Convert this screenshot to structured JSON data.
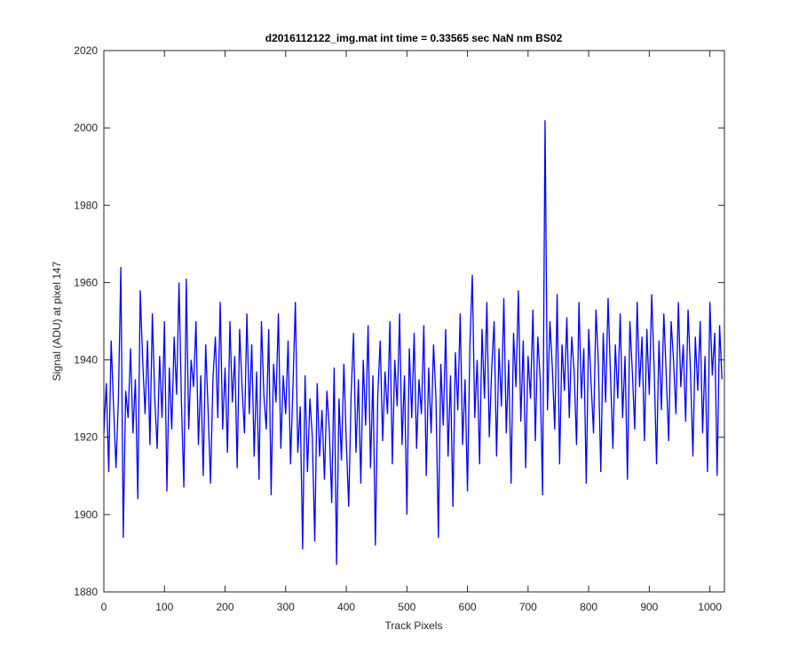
{
  "chart_data": {
    "type": "line",
    "title": "d2016112122_img.mat int time = 0.33565 sec  NaN nm BS02",
    "x_label": "Track Pixels",
    "y_label": "Signal (ADU) at pixel 147",
    "xlim": [
      0,
      1024
    ],
    "ylim": [
      1880,
      2020
    ],
    "xticks": [
      0,
      100,
      200,
      300,
      400,
      500,
      600,
      700,
      800,
      900,
      1000
    ],
    "yticks": [
      1880,
      1900,
      1920,
      1940,
      1960,
      1980,
      2000,
      2020
    ],
    "grid": false,
    "x": [
      0,
      4,
      8,
      12,
      16,
      20,
      24,
      28,
      32,
      36,
      40,
      44,
      48,
      52,
      56,
      60,
      64,
      68,
      72,
      76,
      80,
      84,
      88,
      92,
      96,
      100,
      104,
      108,
      112,
      116,
      120,
      124,
      128,
      132,
      136,
      140,
      144,
      148,
      152,
      156,
      160,
      164,
      168,
      172,
      176,
      180,
      184,
      188,
      192,
      196,
      200,
      204,
      208,
      212,
      216,
      220,
      224,
      228,
      232,
      236,
      240,
      244,
      248,
      252,
      256,
      260,
      264,
      268,
      272,
      276,
      280,
      284,
      288,
      292,
      296,
      300,
      304,
      308,
      312,
      316,
      320,
      324,
      328,
      332,
      336,
      340,
      344,
      348,
      352,
      356,
      360,
      364,
      368,
      372,
      376,
      380,
      384,
      388,
      392,
      396,
      400,
      404,
      408,
      412,
      416,
      420,
      424,
      428,
      432,
      436,
      440,
      444,
      448,
      452,
      456,
      460,
      464,
      468,
      472,
      476,
      480,
      484,
      488,
      492,
      496,
      500,
      504,
      508,
      512,
      516,
      520,
      524,
      528,
      532,
      536,
      540,
      544,
      548,
      552,
      556,
      560,
      564,
      568,
      572,
      576,
      580,
      584,
      588,
      592,
      596,
      600,
      604,
      608,
      612,
      616,
      620,
      624,
      628,
      632,
      636,
      640,
      644,
      648,
      652,
      656,
      660,
      664,
      668,
      672,
      676,
      680,
      684,
      688,
      692,
      696,
      700,
      704,
      708,
      712,
      716,
      720,
      724,
      728,
      732,
      736,
      740,
      744,
      748,
      752,
      756,
      760,
      764,
      768,
      772,
      776,
      780,
      784,
      788,
      792,
      796,
      800,
      804,
      808,
      812,
      816,
      820,
      824,
      828,
      832,
      836,
      840,
      844,
      848,
      852,
      856,
      860,
      864,
      868,
      872,
      876,
      880,
      884,
      888,
      892,
      896,
      900,
      904,
      908,
      912,
      916,
      920,
      924,
      928,
      932,
      936,
      940,
      944,
      948,
      952,
      956,
      960,
      964,
      968,
      972,
      976,
      980,
      984,
      988,
      992,
      996,
      1000,
      1004,
      1008,
      1012,
      1016,
      1020
    ],
    "series": [
      {
        "color": "#0000ff",
        "values": [
          1921,
          1934,
          1911,
          1945,
          1928,
          1912,
          1930,
          1964,
          1894,
          1932,
          1925,
          1943,
          1921,
          1935,
          1904,
          1958,
          1940,
          1926,
          1945,
          1918,
          1952,
          1930,
          1917,
          1941,
          1925,
          1950,
          1906,
          1938,
          1922,
          1946,
          1931,
          1960,
          1929,
          1907,
          1961,
          1922,
          1940,
          1933,
          1950,
          1918,
          1936,
          1910,
          1944,
          1927,
          1908,
          1935,
          1946,
          1925,
          1955,
          1922,
          1938,
          1916,
          1950,
          1929,
          1941,
          1912,
          1948,
          1933,
          1921,
          1952,
          1926,
          1944,
          1915,
          1937,
          1909,
          1950,
          1931,
          1922,
          1948,
          1905,
          1939,
          1929,
          1952,
          1917,
          1936,
          1926,
          1945,
          1913,
          1933,
          1955,
          1916,
          1928,
          1891,
          1936,
          1911,
          1930,
          1920,
          1893,
          1934,
          1915,
          1927,
          1909,
          1932,
          1922,
          1903,
          1938,
          1887,
          1930,
          1914,
          1939,
          1919,
          1902,
          1931,
          1947,
          1916,
          1935,
          1908,
          1940,
          1923,
          1949,
          1912,
          1936,
          1892,
          1931,
          1945,
          1919,
          1937,
          1926,
          1950,
          1913,
          1940,
          1928,
          1952,
          1918,
          1936,
          1900,
          1943,
          1925,
          1947,
          1917,
          1935,
          1926,
          1949,
          1910,
          1938,
          1921,
          1944,
          1930,
          1894,
          1939,
          1923,
          1948,
          1915,
          1936,
          1902,
          1942,
          1927,
          1952,
          1918,
          1935,
          1906,
          1944,
          1962,
          1925,
          1940,
          1913,
          1948,
          1930,
          1955,
          1920,
          1938,
          1950,
          1915,
          1943,
          1928,
          1956,
          1921,
          1940,
          1908,
          1947,
          1933,
          1958,
          1924,
          1945,
          1912,
          1941,
          1930,
          1953,
          1919,
          1946,
          1935,
          1905,
          2002,
          1927,
          1950,
          1938,
          1922,
          1957,
          1913,
          1944,
          1932,
          1951,
          1925,
          1946,
          1937,
          1918,
          1955,
          1930,
          1943,
          1908,
          1948,
          1934,
          1921,
          1953,
          1939,
          1911,
          1947,
          1929,
          1956,
          1936,
          1917,
          1944,
          1930,
          1952,
          1925,
          1941,
          1909,
          1950,
          1937,
          1922,
          1955,
          1933,
          1946,
          1919,
          1948,
          1931,
          1957,
          1938,
          1913,
          1945,
          1927,
          1952,
          1936,
          1919,
          1950,
          1940,
          1926,
          1955,
          1933,
          1944,
          1924,
          1953,
          1937,
          1915,
          1946,
          1932,
          1950,
          1921,
          1941,
          1911,
          1955,
          1936,
          1947,
          1910,
          1949,
          1935
        ]
      }
    ]
  }
}
